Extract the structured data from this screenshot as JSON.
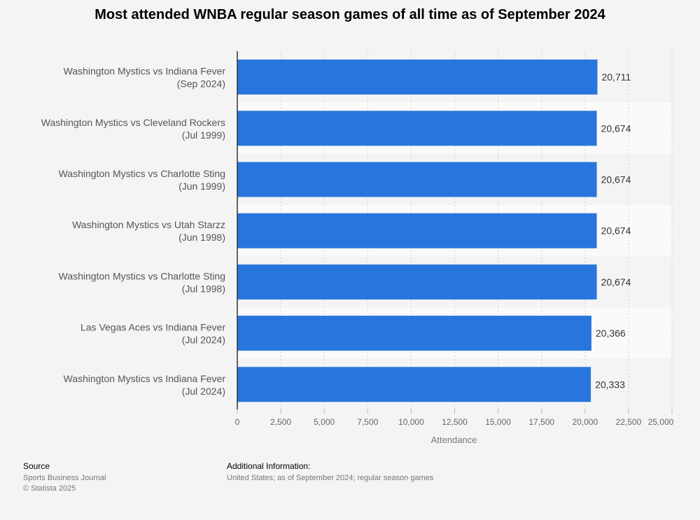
{
  "chart_data": {
    "type": "bar",
    "orientation": "horizontal",
    "title": "Most attended WNBA regular season games of all time as of September 2024",
    "xlabel": "Attendance",
    "ylabel": "",
    "xlim": [
      0,
      25000
    ],
    "x_ticks": [
      "0",
      "2,500",
      "5,000",
      "7,500",
      "10,000",
      "12,500",
      "15,000",
      "17,500",
      "20,000",
      "22,500",
      "25,000"
    ],
    "x_tick_values": [
      0,
      2500,
      5000,
      7500,
      10000,
      12500,
      15000,
      17500,
      20000,
      22500,
      25000
    ],
    "grid": true,
    "bar_color": "#2876dd",
    "categories": [
      [
        "Washington Mystics vs Indiana Fever",
        "(Sep 2024)"
      ],
      [
        "Washington Mystics vs Cleveland Rockers",
        "(Jul 1999)"
      ],
      [
        "Washington Mystics vs Charlotte Sting",
        "(Jun 1999)"
      ],
      [
        "Washington Mystics vs Utah Starzz",
        "(Jun 1998)"
      ],
      [
        "Washington Mystics vs Charlotte Sting",
        "(Jul 1998)"
      ],
      [
        "Las Vegas Aces vs Indiana Fever",
        "(Jul 2024)"
      ],
      [
        "Washington Mystics vs Indiana Fever",
        "(Jul 2024)"
      ]
    ],
    "values": [
      20711,
      20674,
      20674,
      20674,
      20674,
      20366,
      20333
    ],
    "value_labels": [
      "20,711",
      "20,674",
      "20,674",
      "20,674",
      "20,674",
      "20,366",
      "20,333"
    ]
  },
  "footer": {
    "source_heading": "Source",
    "source_lines": [
      "Sports Business Journal",
      "© Statista 2025"
    ],
    "info_heading": "Additional Information:",
    "info_lines": [
      "United States; as of September 2024; regular season games"
    ]
  }
}
